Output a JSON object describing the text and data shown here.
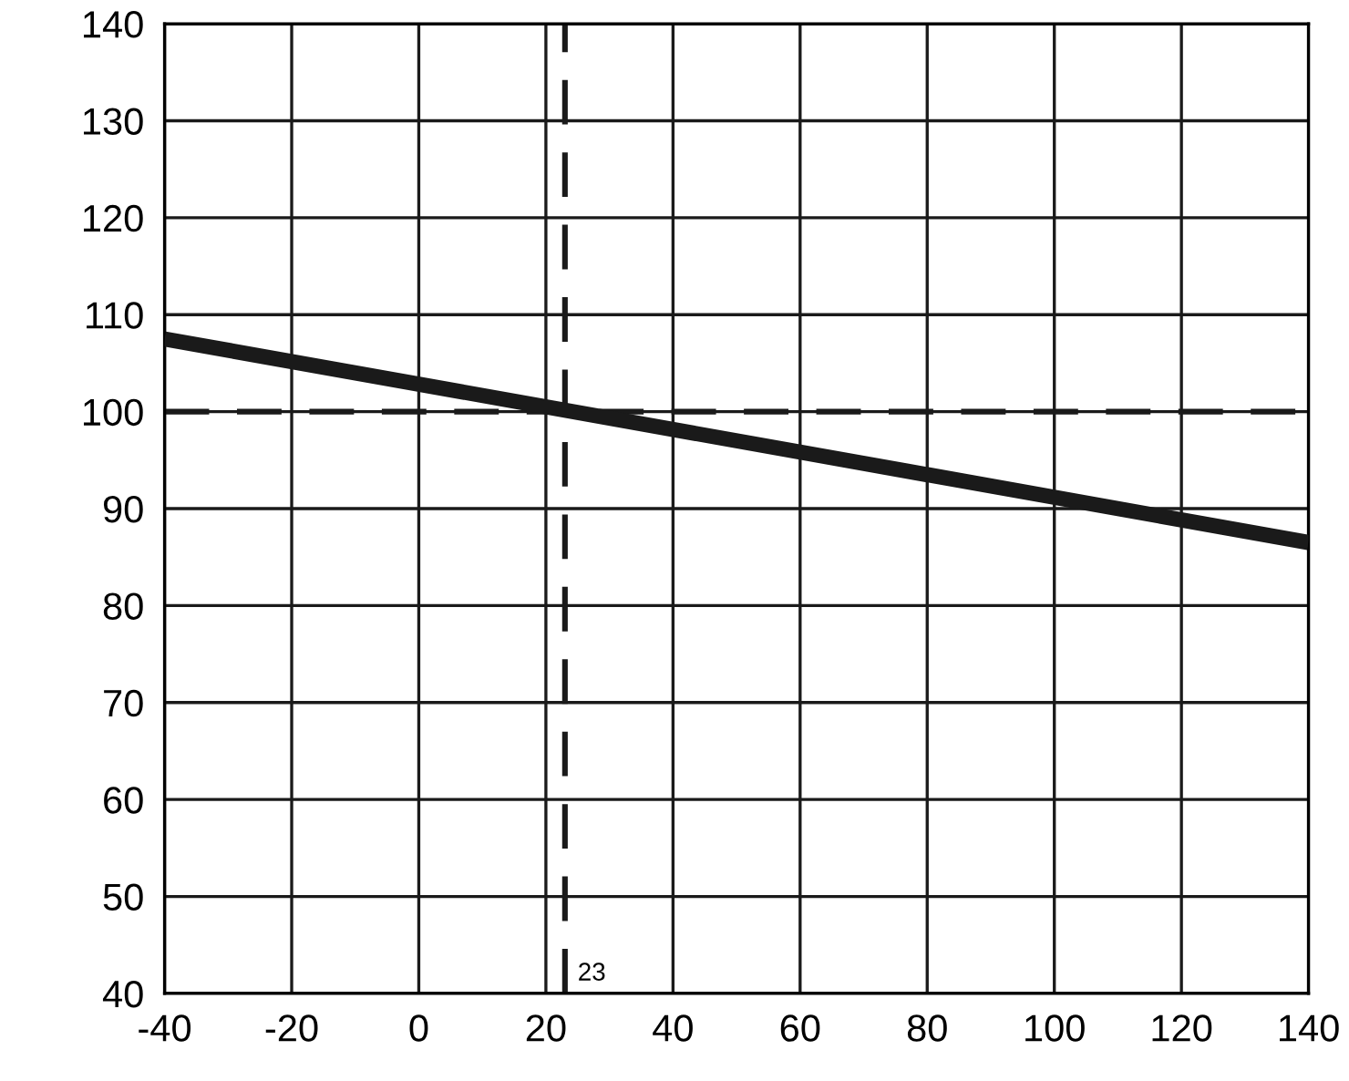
{
  "chart_data": {
    "type": "line",
    "x": [
      -40,
      140
    ],
    "series": [
      {
        "color": "#1a1a1a",
        "values": [
          107.5,
          86.5
        ]
      }
    ],
    "xlim": [
      -40,
      140
    ],
    "ylim": [
      40,
      140
    ],
    "xticks": [
      -40,
      -20,
      0,
      20,
      40,
      60,
      80,
      100,
      120,
      140
    ],
    "yticks": [
      40,
      50,
      60,
      70,
      80,
      90,
      100,
      110,
      120,
      130,
      140
    ],
    "grid": true,
    "marker": "none",
    "line_style": "solid",
    "ref_lines": [
      {
        "axis": "x",
        "value": 23,
        "label": "23",
        "color": "#1a1a1a",
        "line_style": "dashed"
      },
      {
        "axis": "y",
        "value": 100,
        "color": "#1a1a1a",
        "line_style": "dashed"
      }
    ]
  }
}
